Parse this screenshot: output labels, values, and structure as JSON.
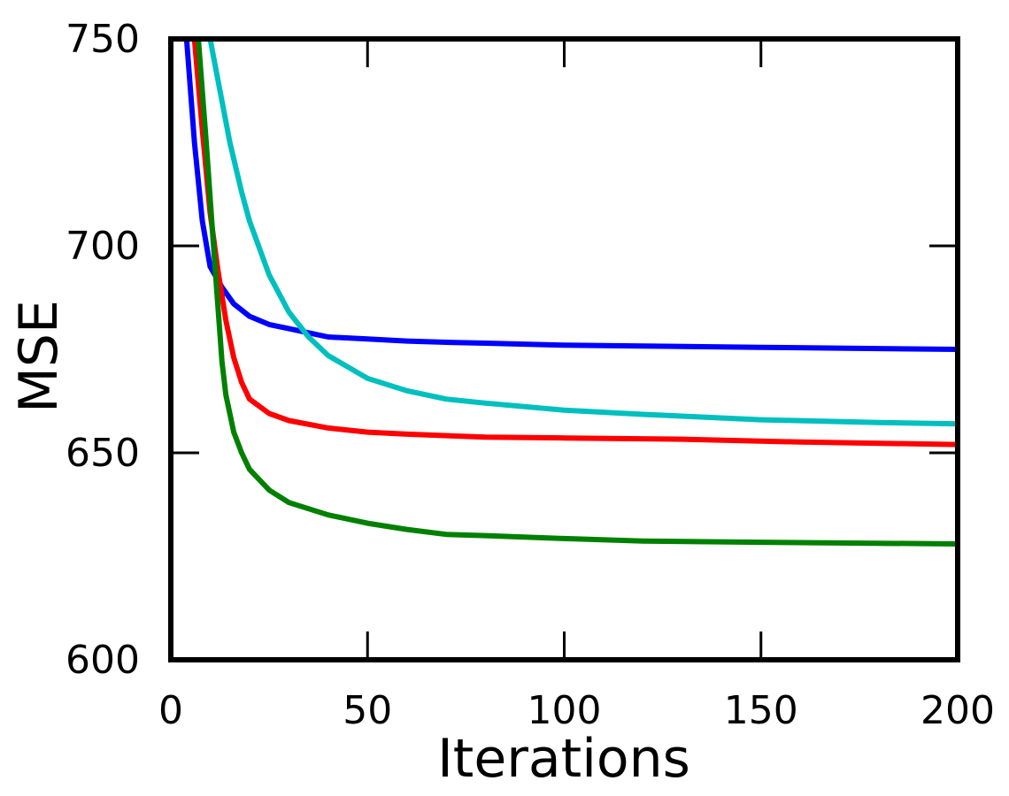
{
  "chart_data": {
    "type": "line",
    "title": "",
    "xlabel": "Iterations",
    "ylabel": "MSE",
    "xlim": [
      0,
      200
    ],
    "ylim": [
      600,
      750
    ],
    "xticks": [
      0,
      50,
      100,
      150,
      200
    ],
    "yticks": [
      600,
      650,
      700,
      750
    ],
    "grid": false,
    "series": [
      {
        "color": "#0000ff",
        "x": [
          4,
          6,
          8,
          10,
          13,
          16,
          20,
          25,
          30,
          40,
          50,
          60,
          70,
          80,
          100,
          120,
          150,
          180,
          200
        ],
        "y": [
          750,
          725,
          706,
          695,
          690,
          686,
          683,
          681,
          680,
          678,
          677.5,
          677,
          676.7,
          676.5,
          676,
          675.8,
          675.5,
          675.2,
          675
        ]
      },
      {
        "color": "#00bfbf",
        "x": [
          10,
          12,
          15,
          18,
          20,
          25,
          30,
          35,
          40,
          50,
          60,
          70,
          80,
          100,
          120,
          150,
          180,
          200
        ],
        "y": [
          750,
          740,
          725,
          713,
          706,
          693,
          684,
          678,
          673.5,
          668,
          665,
          663,
          662,
          660.3,
          659.3,
          658,
          657.3,
          657
        ]
      },
      {
        "color": "#ff0000",
        "x": [
          6,
          8,
          10,
          12,
          14,
          16,
          18,
          20,
          25,
          30,
          40,
          50,
          60,
          80,
          100,
          130,
          160,
          200
        ],
        "y": [
          750,
          728,
          708,
          694,
          682,
          673,
          667,
          663,
          659.5,
          657.8,
          656,
          655,
          654.5,
          653.8,
          653.6,
          653.3,
          652.6,
          652
        ]
      },
      {
        "color": "#008000",
        "x": [
          7,
          9,
          11,
          13,
          14,
          16,
          18,
          20,
          25,
          30,
          40,
          50,
          60,
          70,
          80,
          100,
          120,
          150,
          200
        ],
        "y": [
          750,
          725,
          698,
          672,
          664,
          655,
          650,
          646,
          641,
          638,
          635,
          633,
          631.5,
          630.3,
          630,
          629.3,
          628.7,
          628.4,
          628
        ]
      }
    ]
  }
}
